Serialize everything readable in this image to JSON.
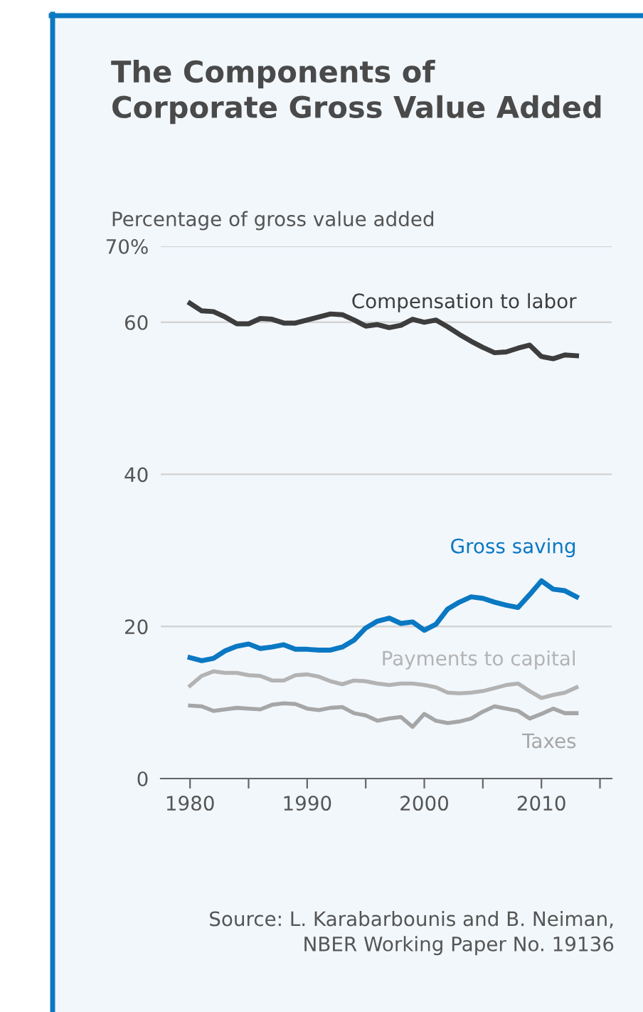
{
  "chart_data": {
    "type": "line",
    "title": "The Components of\nCorporate Gross Value Added",
    "ylabel": "Percentage of gross value added",
    "x": [
      1980,
      1981,
      1982,
      1983,
      1984,
      1985,
      1986,
      1987,
      1988,
      1989,
      1990,
      1991,
      1992,
      1993,
      1994,
      1995,
      1996,
      1997,
      1998,
      1999,
      2000,
      2001,
      2002,
      2003,
      2004,
      2005,
      2006,
      2007,
      2008,
      2009,
      2010,
      2011,
      2012,
      2013
    ],
    "series": [
      {
        "name": "Compensation to labor",
        "color": "#3d3d3d",
        "values": [
          62.5,
          61.5,
          61.4,
          60.7,
          59.8,
          59.8,
          60.5,
          60.4,
          59.9,
          59.9,
          60.3,
          60.7,
          61.1,
          61.0,
          60.3,
          59.5,
          59.7,
          59.3,
          59.6,
          60.4,
          60.0,
          60.3,
          59.4,
          58.4,
          57.5,
          56.7,
          56.0,
          56.1,
          56.6,
          57.0,
          55.5,
          55.2,
          55.7,
          55.6
        ]
      },
      {
        "name": "Gross saving",
        "color": "#0a78c2",
        "values": [
          15.9,
          15.5,
          15.8,
          16.8,
          17.4,
          17.7,
          17.1,
          17.3,
          17.6,
          17.0,
          17.0,
          16.9,
          16.9,
          17.3,
          18.2,
          19.8,
          20.7,
          21.1,
          20.4,
          20.6,
          19.5,
          20.3,
          22.3,
          23.2,
          23.9,
          23.7,
          23.2,
          22.8,
          22.5,
          24.2,
          26.0,
          24.9,
          24.7,
          23.9
        ]
      },
      {
        "name": "Payments to capital",
        "color": "#b3b3b3",
        "values": [
          12.2,
          13.5,
          14.1,
          13.9,
          13.9,
          13.6,
          13.5,
          12.9,
          12.9,
          13.6,
          13.7,
          13.4,
          12.8,
          12.4,
          12.9,
          12.8,
          12.5,
          12.3,
          12.5,
          12.5,
          12.3,
          12.0,
          11.3,
          11.2,
          11.3,
          11.5,
          11.9,
          12.3,
          12.5,
          11.5,
          10.6,
          11.0,
          11.3,
          12.0
        ]
      },
      {
        "name": "Taxes",
        "color": "#a6a6a6",
        "values": [
          9.6,
          9.5,
          8.9,
          9.1,
          9.3,
          9.2,
          9.1,
          9.7,
          9.9,
          9.8,
          9.2,
          9.0,
          9.3,
          9.4,
          8.6,
          8.3,
          7.6,
          7.9,
          8.1,
          6.8,
          8.5,
          7.6,
          7.3,
          7.5,
          7.9,
          8.8,
          9.5,
          9.2,
          8.9,
          7.9,
          8.5,
          9.2,
          8.6,
          8.6
        ]
      }
    ],
    "xlim": [
      1977.5,
      2016
    ],
    "xticks": [
      1980,
      {
        "value": 1985,
        "label": null
      },
      1990,
      {
        "value": 1995,
        "label": null
      },
      2000,
      {
        "value": 2005,
        "label": null
      },
      2010,
      {
        "value": 2015,
        "label": null
      }
    ],
    "ylim": [
      0,
      70
    ],
    "yticks": [
      0,
      20,
      40,
      60,
      {
        "value": 70,
        "label": "70%"
      }
    ],
    "grid": "y",
    "legend": false,
    "marker": "none",
    "line_style": "solid",
    "annotations": [
      "Source: L. Karabarbounis and B. Neiman,\nNBER Working Paper No. 19136"
    ]
  }
}
